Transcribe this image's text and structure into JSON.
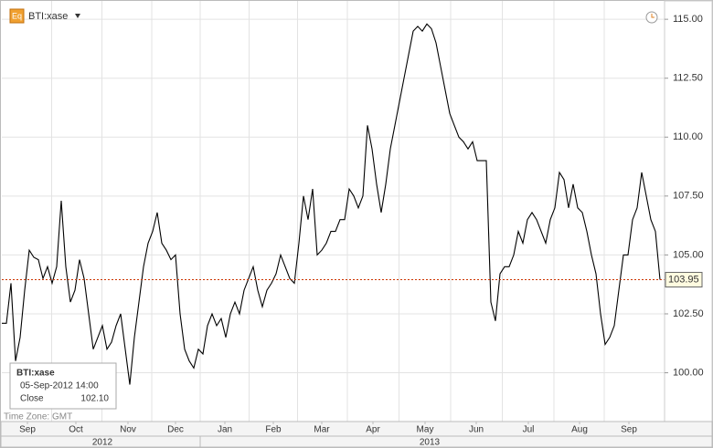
{
  "chart_data": {
    "type": "line",
    "title": "BTI:xase",
    "series": [
      {
        "name": "BTI:xase",
        "color": "#000000",
        "values": [
          102.1,
          102.1,
          103.8,
          100.5,
          101.5,
          103.5,
          105.2,
          104.9,
          104.8,
          104,
          104.5,
          103.8,
          104.5,
          107.3,
          104.5,
          103,
          103.5,
          104.8,
          104,
          102.5,
          101,
          101.5,
          102,
          101,
          101.3,
          102,
          102.5,
          101,
          99.5,
          101.5,
          103,
          104.5,
          105.5,
          106,
          106.8,
          105.5,
          105.2,
          104.8,
          105,
          102.5,
          101,
          100.5,
          100.2,
          101,
          100.8,
          102,
          102.5,
          102,
          102.3,
          101.5,
          102.5,
          103,
          102.5,
          103.5,
          104,
          104.5,
          103.5,
          102.8,
          103.5,
          103.8,
          104.2,
          105,
          104.5,
          104,
          103.8,
          105.5,
          107.5,
          106.5,
          107.8,
          105,
          105.2,
          105.5,
          106,
          106,
          106.5,
          106.5,
          107.8,
          107.5,
          107,
          107.5,
          110.5,
          109.5,
          108,
          106.8,
          108,
          109.5,
          110.5,
          111.5,
          112.5,
          113.5,
          114.5,
          114.7,
          114.5,
          114.8,
          114.6,
          114,
          113,
          112,
          111,
          110.5,
          110,
          109.8,
          109.5,
          109.8,
          109,
          109,
          109,
          103,
          102.2,
          104.2,
          104.5,
          104.5,
          105,
          106,
          105.5,
          106.5,
          106.8,
          106.5,
          106,
          105.5,
          106.5,
          107,
          108.5,
          108.2,
          107,
          108,
          107,
          106.8,
          106,
          105,
          104.2,
          102.5,
          101.2,
          101.5,
          102,
          103.5,
          105,
          105,
          106.5,
          107,
          108.5,
          107.5,
          106.5,
          106,
          103.95
        ]
      }
    ],
    "xlim": [
      0,
      145
    ],
    "xticks": [
      {
        "value": 5.6,
        "label": "Sep"
      },
      {
        "value": 16.2,
        "label": "Oct"
      },
      {
        "value": 27.6,
        "label": "Nov"
      },
      {
        "value": 38,
        "label": "Dec"
      },
      {
        "value": 48.8,
        "label": "Jan"
      },
      {
        "value": 59.4,
        "label": "Feb"
      },
      {
        "value": 70,
        "label": "Mar"
      },
      {
        "value": 81.2,
        "label": "Apr"
      },
      {
        "value": 92.6,
        "label": "May"
      },
      {
        "value": 103.8,
        "label": "Jun"
      },
      {
        "value": 115.2,
        "label": "Jul"
      },
      {
        "value": 126.4,
        "label": "Aug"
      },
      {
        "value": 137.2,
        "label": "Sep"
      }
    ],
    "years": [
      "2012",
      "2013"
    ],
    "ylim": [
      97.93,
      115.78
    ],
    "yticks": [
      {
        "value": 100,
        "label": "100.00"
      },
      {
        "value": 102.5,
        "label": "102.50"
      },
      {
        "value": 105,
        "label": "105.00"
      },
      {
        "value": 107.5,
        "label": "107.50"
      },
      {
        "value": 110,
        "label": "110.00"
      },
      {
        "value": 112.5,
        "label": "112.50"
      },
      {
        "value": 115,
        "label": "115.00"
      }
    ],
    "grid": true,
    "last_price_color": "#cc3300",
    "timezone": "Time Zone: GMT",
    "tooltip": {
      "title": "BTI:xase",
      "date": "05-Sep-2012 14:00",
      "label": "Close",
      "value": "102.10"
    }
  }
}
